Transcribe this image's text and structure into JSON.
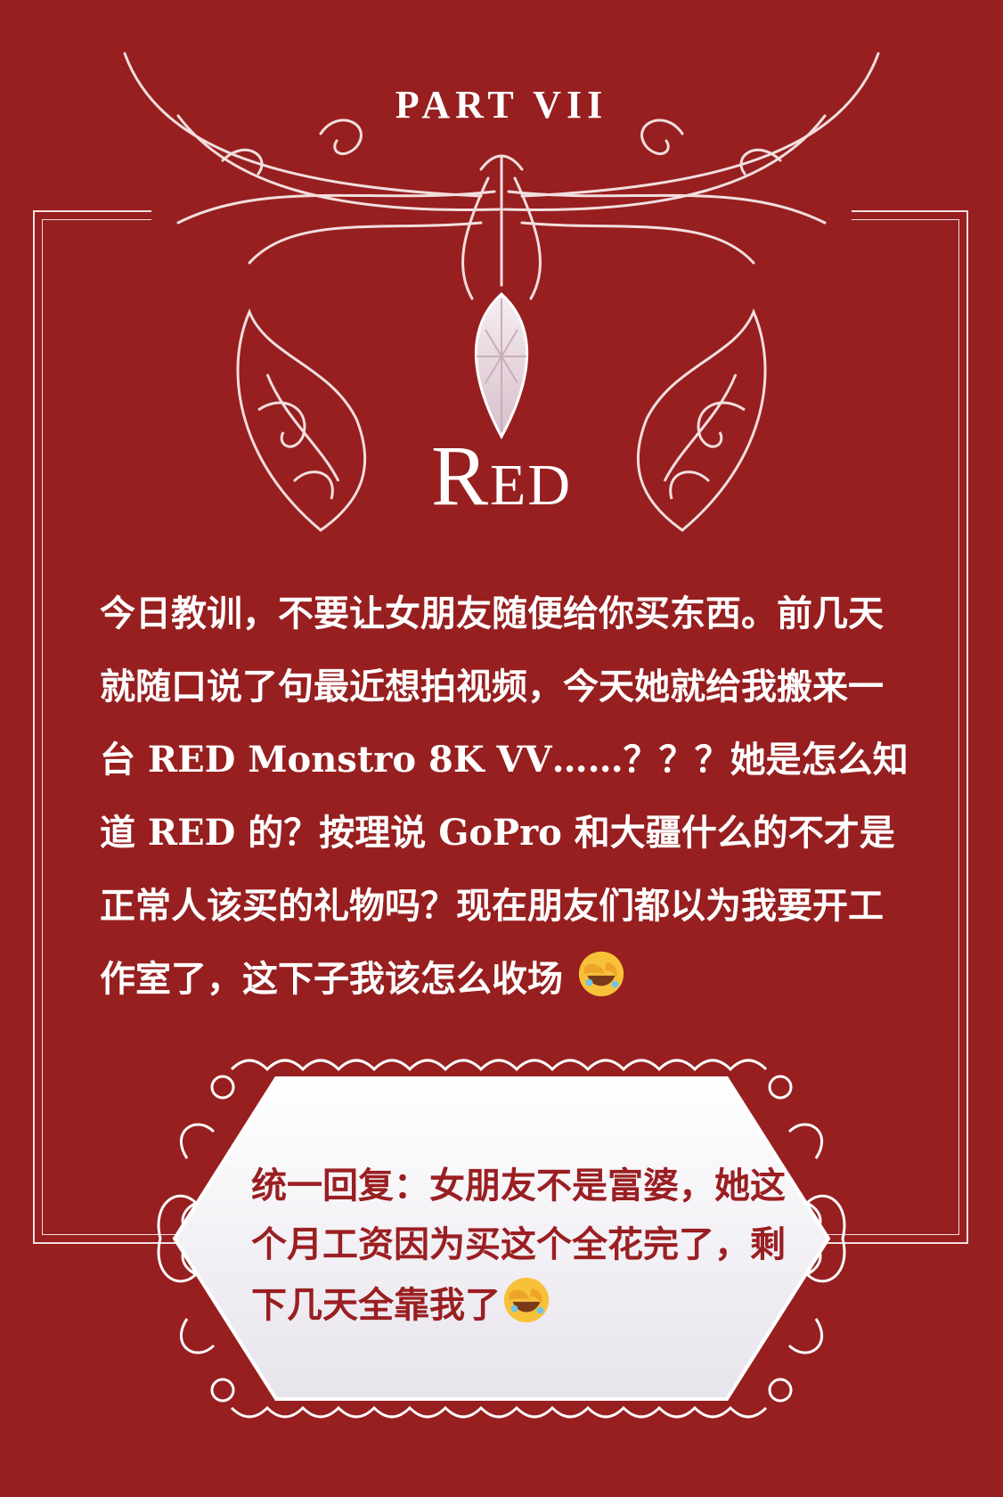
{
  "header": {
    "part_label": "PART VII"
  },
  "title": {
    "first_letter": "R",
    "rest": "ED"
  },
  "story": {
    "text": "今日教训，不要让女朋友随便给你买东西。前几天就随口说了句最近想拍视频，今天她就给我搬来一台 RED Monstro 8K VV……？？？她是怎么知道 RED 的？按理说 GoPro 和大疆什么的不才是正常人该买的礼物吗？现在朋友们都以为我要开工作室了，这下子我该怎么收场",
    "emoji": "face-palm-laughing-emoji"
  },
  "reply": {
    "text": "统一回复：女朋友不是富婆，她这个月工资因为买这个全花完了，剩下几天全靠我了",
    "emoji": "face-palm-laughing-emoji"
  },
  "colors": {
    "background": "#971f20",
    "ornament": "#f3dede",
    "reply_text": "#9a1f22",
    "reply_panel": "#f4f3f6"
  }
}
